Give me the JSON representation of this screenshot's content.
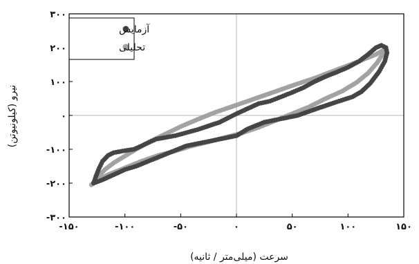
{
  "chart_data": {
    "type": "scatter",
    "title": "",
    "xlabel": "سرعت (میلی‌متر / ثانیه)",
    "ylabel": "نیرو (کیلونیوتن)",
    "xlim": [
      -150,
      150
    ],
    "ylim": [
      -300,
      300
    ],
    "x_ticks": [
      -150,
      -100,
      -50,
      0,
      50,
      100,
      150
    ],
    "y_ticks": [
      -300,
      -200,
      -100,
      0,
      100,
      200,
      300
    ],
    "x_tick_labels": [
      "-۱۵۰",
      "-۱۰۰",
      "-۵۰",
      "۰",
      "۵۰",
      "۱۰۰",
      "۱۵۰"
    ],
    "y_tick_labels": [
      "-۳۰۰",
      "-۲۰۰",
      "-۱۰۰",
      "۰",
      "۱۰۰",
      "۲۰۰",
      "۳۰۰"
    ],
    "grid": "zero-lines",
    "legend_position": "top-left",
    "series": [
      {
        "name": "آزمایش",
        "color": "#454545",
        "upper": [
          [
            -128,
            -200
          ],
          [
            -126,
            -180
          ],
          [
            -123,
            -155
          ],
          [
            -120,
            -135
          ],
          [
            -115,
            -118
          ],
          [
            -110,
            -110
          ],
          [
            -100,
            -104
          ],
          [
            -92,
            -100
          ],
          [
            -85,
            -90
          ],
          [
            -82,
            -85
          ],
          [
            -80,
            -82
          ],
          [
            -72,
            -70
          ],
          [
            -55,
            -60
          ],
          [
            -35,
            -42
          ],
          [
            -15,
            -20
          ],
          [
            0,
            5
          ],
          [
            10,
            20
          ],
          [
            20,
            35
          ],
          [
            30,
            42
          ],
          [
            40,
            55
          ],
          [
            50,
            68
          ],
          [
            60,
            82
          ],
          [
            70,
            100
          ],
          [
            80,
            115
          ],
          [
            90,
            128
          ],
          [
            100,
            142
          ],
          [
            110,
            160
          ],
          [
            118,
            180
          ],
          [
            125,
            200
          ],
          [
            130,
            207
          ],
          [
            134,
            200
          ]
        ],
        "lower": [
          [
            134,
            200
          ],
          [
            135,
            185
          ],
          [
            133,
            160
          ],
          [
            128,
            130
          ],
          [
            120,
            95
          ],
          [
            112,
            70
          ],
          [
            104,
            55
          ],
          [
            90,
            40
          ],
          [
            72,
            20
          ],
          [
            55,
            0
          ],
          [
            40,
            -10
          ],
          [
            25,
            -20
          ],
          [
            10,
            -40
          ],
          [
            0,
            -60
          ],
          [
            -15,
            -70
          ],
          [
            -30,
            -80
          ],
          [
            -45,
            -90
          ],
          [
            -60,
            -110
          ],
          [
            -75,
            -130
          ],
          [
            -90,
            -150
          ],
          [
            -100,
            -160
          ],
          [
            -110,
            -175
          ],
          [
            -120,
            -190
          ],
          [
            -128,
            -200
          ]
        ]
      },
      {
        "name": "تحلیلی",
        "color": "#a2a2a2",
        "upper": [
          [
            -130,
            -205
          ],
          [
            -125,
            -185
          ],
          [
            -118,
            -160
          ],
          [
            -110,
            -140
          ],
          [
            -100,
            -120
          ],
          [
            -90,
            -100
          ],
          [
            -78,
            -78
          ],
          [
            -65,
            -57
          ],
          [
            -50,
            -33
          ],
          [
            -35,
            -12
          ],
          [
            -20,
            8
          ],
          [
            -5,
            25
          ],
          [
            10,
            42
          ],
          [
            30,
            65
          ],
          [
            50,
            88
          ],
          [
            70,
            110
          ],
          [
            90,
            135
          ],
          [
            110,
            160
          ],
          [
            125,
            180
          ],
          [
            133,
            195
          ],
          [
            134,
            200
          ]
        ],
        "lower": [
          [
            134,
            200
          ],
          [
            132,
            185
          ],
          [
            126,
            155
          ],
          [
            118,
            125
          ],
          [
            108,
            98
          ],
          [
            95,
            72
          ],
          [
            80,
            50
          ],
          [
            65,
            25
          ],
          [
            50,
            5
          ],
          [
            35,
            -15
          ],
          [
            20,
            -35
          ],
          [
            5,
            -52
          ],
          [
            -10,
            -65
          ],
          [
            -25,
            -78
          ],
          [
            -40,
            -90
          ],
          [
            -55,
            -105
          ],
          [
            -70,
            -118
          ],
          [
            -85,
            -135
          ],
          [
            -100,
            -155
          ],
          [
            -115,
            -175
          ],
          [
            -125,
            -192
          ],
          [
            -130,
            -205
          ]
        ]
      }
    ]
  }
}
